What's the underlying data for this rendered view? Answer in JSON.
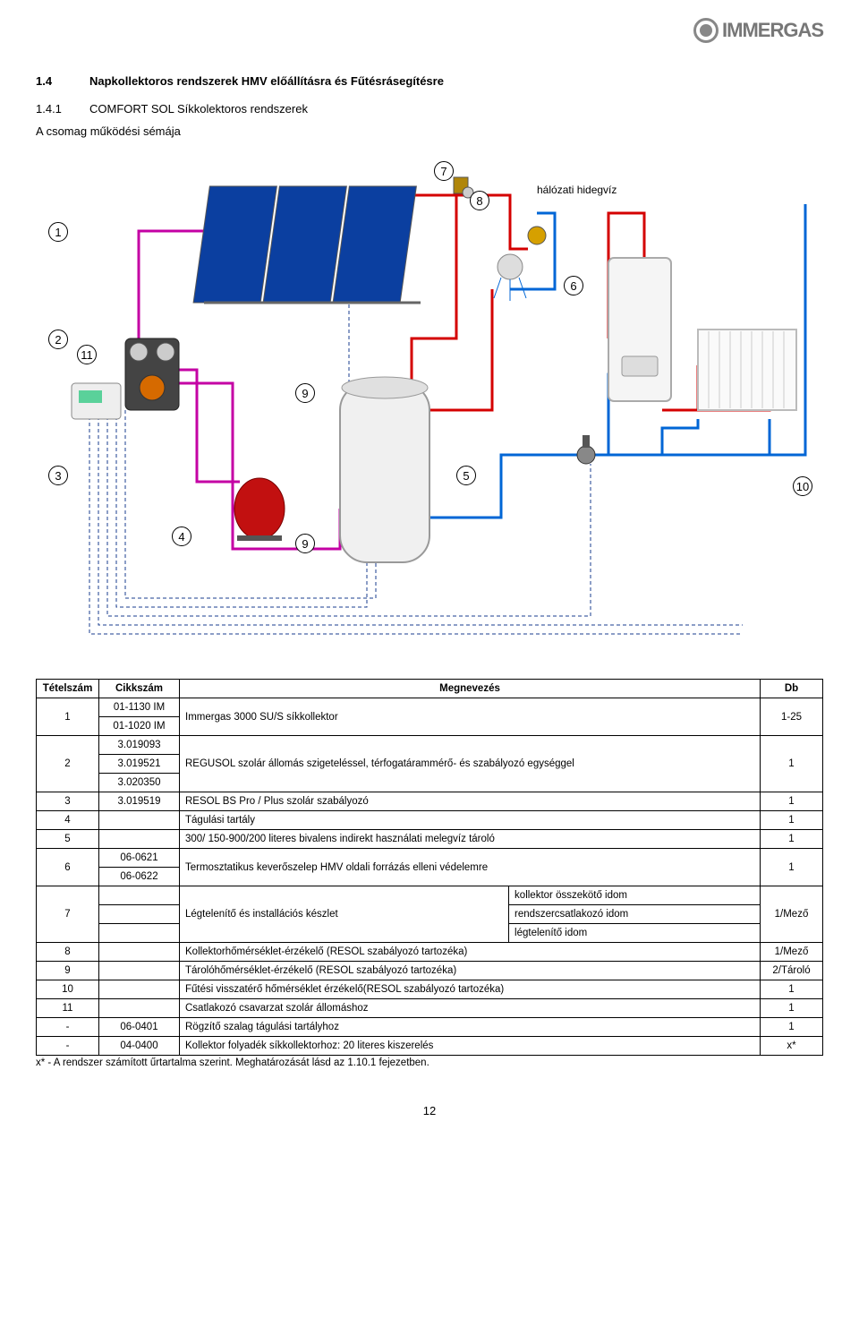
{
  "logo_text": "IMMERGAS",
  "heading": {
    "num": "1.4",
    "text": "Napkollektoros rendszerek HMV előállításra és Fűtésrásegítésre"
  },
  "subheading": {
    "num": "1.4.1",
    "text": "COMFORT SOL Síkkolektoros rendszerek"
  },
  "schema_label": "A csomag működési sémája",
  "diagram": {
    "cold_water_label": "hálózati hidegvíz",
    "callouts": {
      "c1": "1",
      "c2": "2",
      "c3": "3",
      "c4": "4",
      "c5": "5",
      "c6": "6",
      "c7": "7",
      "c8": "8",
      "c9a": "9",
      "c9b": "9",
      "c10": "10",
      "c11": "11"
    },
    "colors": {
      "hot": "#d40000",
      "cold": "#0066d6",
      "magenta": "#c400a4",
      "dash": "#1a3d8f",
      "panel": "#0b3fa0",
      "orange": "#d66a00"
    }
  },
  "table": {
    "headers": [
      "Tételszám",
      "Cikkszám",
      "Megnevezés",
      "Db"
    ],
    "rows": [
      {
        "t": "1",
        "c": [
          "01-1130 IM",
          "01-1020 IM"
        ],
        "m": "Immergas 3000 SU/S síkkollektor",
        "d": "1-25"
      },
      {
        "t": "2",
        "c": [
          "3.019093",
          "3.019521",
          "3.020350"
        ],
        "m": "REGUSOL szolár állomás szigeteléssel, térfogatárammérő- és szabályozó egységgel",
        "d": "1"
      },
      {
        "t": "3",
        "c": [
          "3.019519"
        ],
        "m": "RESOL BS Pro / Plus szolár szabályozó",
        "d": "1"
      },
      {
        "t": "4",
        "c": [
          ""
        ],
        "m": "Tágulási tartály",
        "d": "1"
      },
      {
        "t": "5",
        "c": [
          ""
        ],
        "m": "300/ 150-900/200 literes bivalens indirekt használati melegvíz tároló",
        "d": "1"
      },
      {
        "t": "6",
        "c": [
          "06-0621",
          "06-0622"
        ],
        "m": "Termosztatikus keverőszelep HMV oldali forrázás elleni védelemre",
        "d": "1"
      },
      {
        "t": "7",
        "c": [
          ""
        ],
        "m": "Légtelenítő és installációs készlet",
        "sub": [
          "kollektor összekötő idom",
          "rendszercsatlakozó idom",
          "légtelenítő idom"
        ],
        "d": "1/Mező"
      },
      {
        "t": "8",
        "c": [
          ""
        ],
        "m": "Kollektorhőmérséklet-érzékelő (RESOL szabályozó tartozéka)",
        "d": "1/Mező"
      },
      {
        "t": "9",
        "c": [
          ""
        ],
        "m": "Tárolóhőmérséklet-érzékelő (RESOL szabályozó tartozéka)",
        "d": "2/Tároló"
      },
      {
        "t": "10",
        "c": [
          ""
        ],
        "m": "Fűtési visszatérő hőmérséklet érzékelő(RESOL szabályozó tartozéka)",
        "d": "1"
      },
      {
        "t": "11",
        "c": [
          ""
        ],
        "m": "Csatlakozó csavarzat szolár állomáshoz",
        "d": "1"
      },
      {
        "t": "-",
        "c": [
          "06-0401"
        ],
        "m": "Rögzítő szalag tágulási tartályhoz",
        "d": "1"
      },
      {
        "t": "-",
        "c": [
          "04-0400"
        ],
        "m": "Kollektor folyadék síkkollektorhoz: 20 literes kiszerelés",
        "d": "x*"
      }
    ]
  },
  "footnote": "x* - A rendszer számított űrtartalma szerint. Meghatározását lásd az 1.10.1 fejezetben.",
  "page_number": "12"
}
